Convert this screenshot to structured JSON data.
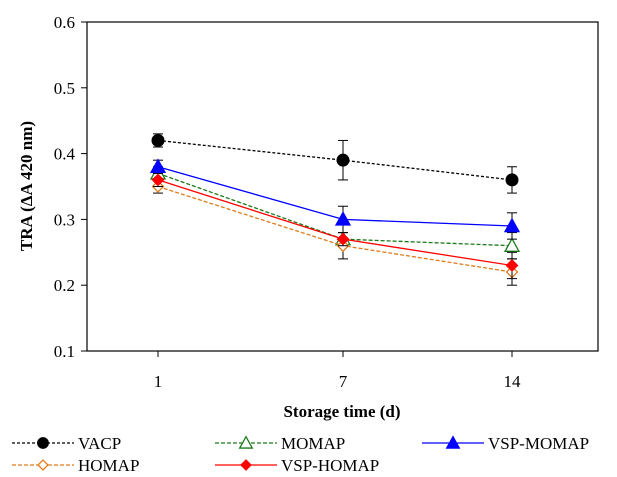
{
  "chart_data": {
    "type": "line",
    "title": "",
    "xlabel": "Storage time (d)",
    "ylabel": "TRA (ΔA  420 nm)",
    "categories": [
      "1",
      "7",
      "14"
    ],
    "ylim": [
      0.1,
      0.6
    ],
    "yticks": [
      "0.1",
      "0.2",
      "0.3",
      "0.4",
      "0.5",
      "0.6"
    ],
    "grid": false,
    "legend_position": "bottom",
    "series": [
      {
        "name": "VACP",
        "values": [
          0.42,
          0.39,
          0.36
        ],
        "errors": [
          0.01,
          0.03,
          0.02
        ],
        "color": "#000000",
        "dash": "dotted",
        "marker": "circle-filled"
      },
      {
        "name": "MOMAP",
        "values": [
          0.37,
          0.27,
          0.26
        ],
        "errors": [
          0.01,
          0.01,
          0.02
        ],
        "color": "#1a7a1a",
        "dash": "dashed",
        "marker": "triangle-open"
      },
      {
        "name": "VSP-MOMAP",
        "values": [
          0.38,
          0.3,
          0.29
        ],
        "errors": [
          0.01,
          0.02,
          0.02
        ],
        "color": "#0000ff",
        "dash": "solid",
        "marker": "triangle-filled"
      },
      {
        "name": "HOMAP",
        "values": [
          0.35,
          0.26,
          0.22
        ],
        "errors": [
          0.01,
          0.02,
          0.02
        ],
        "color": "#e07b1a",
        "dash": "dashed",
        "marker": "diamond-open"
      },
      {
        "name": "VSP-HOMAP",
        "values": [
          0.36,
          0.27,
          0.23
        ],
        "errors": [
          0.01,
          0.01,
          0.02
        ],
        "color": "#ff0000",
        "dash": "solid",
        "marker": "diamond-filled"
      }
    ],
    "legend_rows": [
      [
        "VACP",
        "MOMAP",
        "VSP-MOMAP"
      ],
      [
        "HOMAP",
        "VSP-HOMAP"
      ]
    ]
  }
}
